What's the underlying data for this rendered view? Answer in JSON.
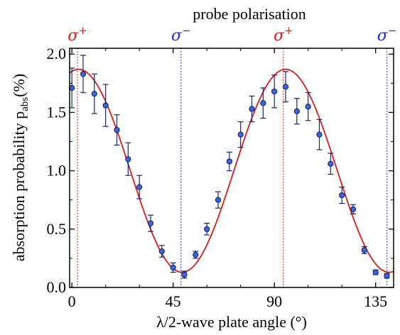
{
  "chart_data": {
    "type": "scatter",
    "top_title": "probe polarisation",
    "xlabel": "λ/2-wave plate angle (°)",
    "ylabel_main": "absorption probability p",
    "ylabel_sub": "abs",
    "ylabel_unit": "(%)",
    "xlim": [
      -1,
      143
    ],
    "ylim": [
      0.0,
      2.05
    ],
    "xticks": [
      0,
      45,
      90,
      135
    ],
    "xtick_labels": [
      "0",
      "45",
      "90",
      "135"
    ],
    "yticks": [
      0.0,
      0.5,
      1.0,
      1.5,
      2.0
    ],
    "ytick_labels": [
      "0.0",
      "0.5",
      "1.0",
      "1.5",
      "2.0"
    ],
    "grid": false,
    "colors": {
      "points": "#3a66e0",
      "fit": "#e11a1a",
      "sigma_plus": "#e11a1a",
      "sigma_minus": "#1f2fc8"
    },
    "polarisation_markers": [
      {
        "x": 2.5,
        "base": "σ",
        "sup": "+",
        "color": "#e11a1a"
      },
      {
        "x": 48.5,
        "base": "σ",
        "sup": "−",
        "color": "#1f2fc8"
      },
      {
        "x": 94,
        "base": "σ",
        "sup": "+",
        "color": "#e11a1a"
      },
      {
        "x": 140,
        "base": "σ",
        "sup": "−",
        "color": "#1f2fc8"
      }
    ],
    "series": [
      {
        "kind": "points_with_error",
        "points": [
          {
            "x": 0,
            "y": 1.71,
            "err": 0.17
          },
          {
            "x": 5,
            "y": 1.83,
            "err": 0.16
          },
          {
            "x": 10,
            "y": 1.66,
            "err": 0.17
          },
          {
            "x": 15,
            "y": 1.56,
            "err": 0.18
          },
          {
            "x": 20,
            "y": 1.35,
            "err": 0.13
          },
          {
            "x": 25,
            "y": 1.1,
            "err": 0.14
          },
          {
            "x": 30,
            "y": 0.86,
            "err": 0.1
          },
          {
            "x": 35,
            "y": 0.55,
            "err": 0.07
          },
          {
            "x": 40,
            "y": 0.31,
            "err": 0.05
          },
          {
            "x": 45,
            "y": 0.17,
            "err": 0.04
          },
          {
            "x": 50,
            "y": 0.11,
            "err": 0.03
          },
          {
            "x": 55,
            "y": 0.28,
            "err": 0.03
          },
          {
            "x": 60,
            "y": 0.5,
            "err": 0.05
          },
          {
            "x": 65,
            "y": 0.75,
            "err": 0.07
          },
          {
            "x": 70,
            "y": 1.08,
            "err": 0.08
          },
          {
            "x": 75,
            "y": 1.31,
            "err": 0.11
          },
          {
            "x": 80,
            "y": 1.53,
            "err": 0.11
          },
          {
            "x": 85,
            "y": 1.58,
            "err": 0.13
          },
          {
            "x": 90,
            "y": 1.68,
            "err": 0.14
          },
          {
            "x": 95,
            "y": 1.72,
            "err": 0.13
          },
          {
            "x": 100,
            "y": 1.51,
            "err": 0.11
          },
          {
            "x": 105,
            "y": 1.55,
            "err": 0.12
          },
          {
            "x": 110,
            "y": 1.31,
            "err": 0.13
          },
          {
            "x": 115,
            "y": 1.06,
            "err": 0.09
          },
          {
            "x": 120,
            "y": 0.79,
            "err": 0.07
          },
          {
            "x": 125,
            "y": 0.67,
            "err": 0.04
          },
          {
            "x": 130,
            "y": 0.32,
            "err": 0.03
          },
          {
            "x": 135,
            "y": 0.13,
            "err": 0.02
          },
          {
            "x": 140,
            "y": 0.1,
            "err": 0.02
          }
        ]
      },
      {
        "kind": "fit",
        "model": "sin2",
        "offset": 0.13,
        "amplitude": 1.74,
        "period": 92,
        "peak_x": 3
      }
    ]
  }
}
